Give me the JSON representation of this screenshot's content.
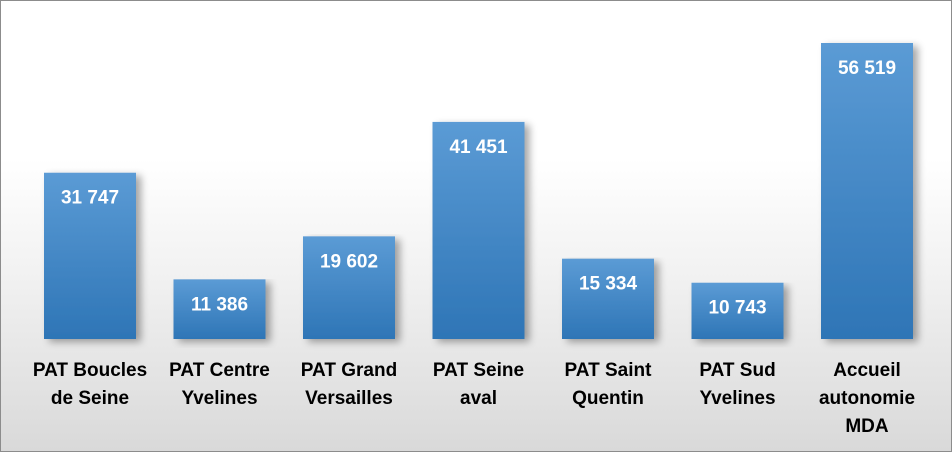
{
  "chart_data": {
    "type": "bar",
    "title": "",
    "xlabel": "",
    "ylabel": "",
    "categories": [
      [
        "PAT Boucles",
        "de Seine"
      ],
      [
        "PAT Centre",
        "Yvelines"
      ],
      [
        "PAT Grand",
        "Versailles"
      ],
      [
        "PAT Seine",
        "aval"
      ],
      [
        "PAT Saint",
        "Quentin"
      ],
      [
        "PAT Sud",
        "Yvelines"
      ],
      [
        "Accueil",
        "autonomie",
        "MDA"
      ]
    ],
    "values": [
      31747,
      11386,
      19602,
      41451,
      15334,
      10743,
      56519
    ],
    "value_labels": [
      "31 747",
      "11 386",
      "19 602",
      "41 451",
      "15 334",
      "10 743",
      "56 519"
    ],
    "ylim": [
      0,
      56519
    ],
    "grid": false,
    "legend": "none",
    "colors": {
      "bar_top": "#5b9bd5",
      "bar_bottom": "#2e75b6",
      "label": "#ffffff"
    }
  }
}
